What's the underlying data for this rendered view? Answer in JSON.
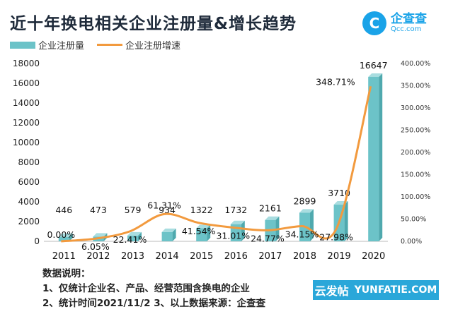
{
  "title": "近十年换电相关企业注册量&增长趋势",
  "logo": {
    "cn": "企查查",
    "en": "Qcc.com"
  },
  "legend": {
    "bars": "企业注册量",
    "line": "企业注册增速"
  },
  "notes": {
    "heading": "数据说明：",
    "line1": "1、仅统计企业名、产品、经营范围含换电的企业",
    "line2": "2、统计时间2021/11/2   3、以上数据来源：企查查"
  },
  "watermark": {
    "cn": "云发帖",
    "en": "YUNFATIE.COM"
  },
  "colors": {
    "bar": "#6cc3c8",
    "bar_top": "#a9dde0",
    "line": "#f29a3e"
  },
  "chart_data": {
    "type": "bar",
    "categories": [
      "2011",
      "2012",
      "2013",
      "2014",
      "2015",
      "2016",
      "2017",
      "2018",
      "2019",
      "2020"
    ],
    "series": [
      {
        "name": "企业注册量",
        "type": "bar",
        "axis": "left",
        "values": [
          446,
          473,
          579,
          934,
          1322,
          1732,
          2161,
          2899,
          3710,
          16647
        ],
        "labels": [
          "446",
          "473",
          "579",
          "934",
          "1322",
          "1732",
          "2161",
          "2899",
          "3710",
          "16647"
        ]
      },
      {
        "name": "企业注册增速",
        "type": "line",
        "axis": "right",
        "values": [
          0.0,
          6.05,
          22.41,
          61.31,
          41.54,
          31.01,
          24.77,
          34.15,
          27.98,
          348.71
        ],
        "labels": [
          "0.00%",
          "6.05%",
          "22.41%",
          "61.31%",
          "41.54%",
          "31.01%",
          "24.77%",
          "34.15%",
          "27.98%",
          "348.71%"
        ]
      }
    ],
    "y_left": {
      "min": 0,
      "max": 18000,
      "ticks": [
        "0",
        "2000",
        "4000",
        "6000",
        "8000",
        "10000",
        "12000",
        "14000",
        "16000",
        "18000"
      ]
    },
    "y_right": {
      "min": 0,
      "max": 400,
      "ticks": [
        "0.00%",
        "50.00%",
        "100.00%",
        "150.00%",
        "200.00%",
        "250.00%",
        "300.00%",
        "350.00%",
        "400.00%"
      ]
    },
    "grid": false
  }
}
